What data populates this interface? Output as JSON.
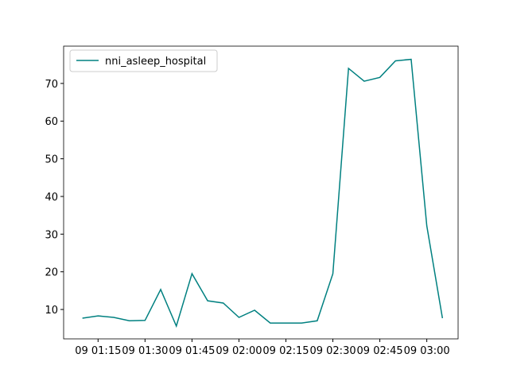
{
  "chart_data": {
    "type": "line",
    "x": [
      "09 01:10",
      "09 01:15",
      "09 01:20",
      "09 01:25",
      "09 01:30",
      "09 01:35",
      "09 01:40",
      "09 01:45",
      "09 01:50",
      "09 01:55",
      "09 02:00",
      "09 02:05",
      "09 02:10",
      "09 02:15",
      "09 02:20",
      "09 02:25",
      "09 02:30",
      "09 02:35",
      "09 02:40",
      "09 02:45",
      "09 02:50",
      "09 02:55",
      "09 03:00",
      "09 03:05"
    ],
    "series": [
      {
        "name": "nni_asleep_hospital",
        "color": "#008080",
        "values": [
          7.7,
          8.3,
          7.9,
          7.0,
          7.1,
          15.3,
          5.6,
          19.5,
          12.3,
          11.7,
          7.9,
          9.8,
          6.4,
          6.4,
          6.4,
          7.0,
          19.5,
          74.0,
          70.6,
          71.6,
          76.0,
          76.4,
          32.2,
          7.7
        ]
      }
    ],
    "xlim": [
      "09 01:04",
      "09 03:10"
    ],
    "xticks": [
      "09 01:15",
      "09 01:30",
      "09 01:45",
      "09 02:00",
      "09 02:15",
      "09 02:30",
      "09 02:45",
      "09 03:00"
    ],
    "ylim": [
      2.2,
      79.9
    ],
    "yticks": [
      10,
      20,
      30,
      40,
      50,
      60,
      70
    ],
    "legend": "upper left"
  }
}
